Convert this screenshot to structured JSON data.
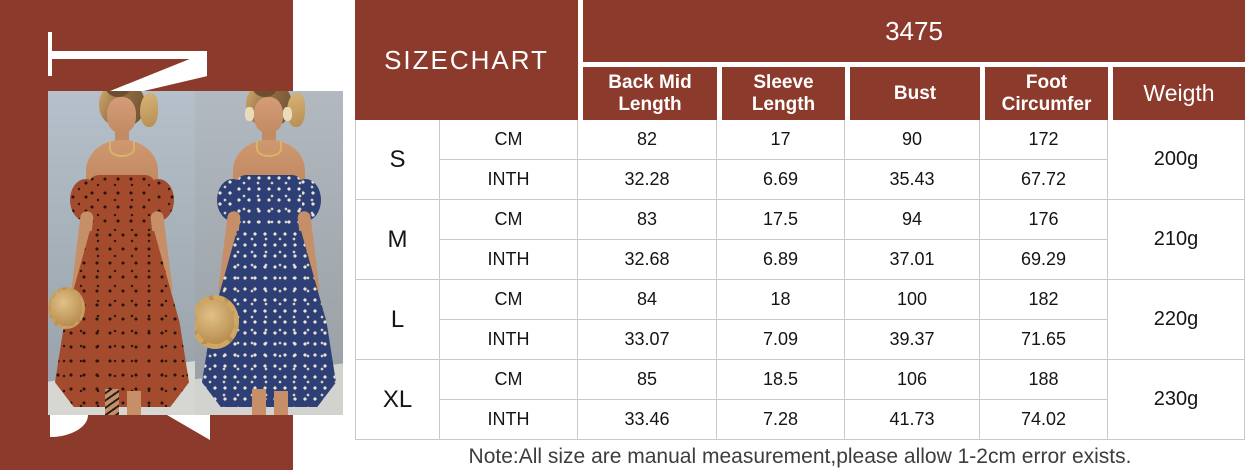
{
  "colors": {
    "accent_brown": "#8B3A2B",
    "dress_rust": "#A34B2C",
    "dress_navy": "#2D3F74",
    "note_gray": "#3d3d3d"
  },
  "table": {
    "title": "SIZECHART",
    "model_number": "3475",
    "column_headers": [
      "Back Mid Length",
      "Sleeve Length",
      "Bust",
      "Foot Circumfer"
    ],
    "weight_header": "Weigth",
    "unit_cm": "CM",
    "unit_inch": "INTH",
    "rows": [
      {
        "size": "S",
        "cm": [
          "82",
          "17",
          "90",
          "172"
        ],
        "inth": [
          "32.28",
          "6.69",
          "35.43",
          "67.72"
        ],
        "weight": "200g"
      },
      {
        "size": "M",
        "cm": [
          "83",
          "17.5",
          "94",
          "176"
        ],
        "inth": [
          "32.68",
          "6.89",
          "37.01",
          "69.29"
        ],
        "weight": "210g"
      },
      {
        "size": "L",
        "cm": [
          "84",
          "18",
          "100",
          "182"
        ],
        "inth": [
          "33.07",
          "7.09",
          "39.37",
          "71.65"
        ],
        "weight": "220g"
      },
      {
        "size": "XL",
        "cm": [
          "85",
          "18.5",
          "106",
          "188"
        ],
        "inth": [
          "33.46",
          "7.28",
          "41.73",
          "74.02"
        ],
        "weight": "230g"
      }
    ],
    "note": "Note:All size are manual measurement,please allow 1-2cm error exists."
  }
}
